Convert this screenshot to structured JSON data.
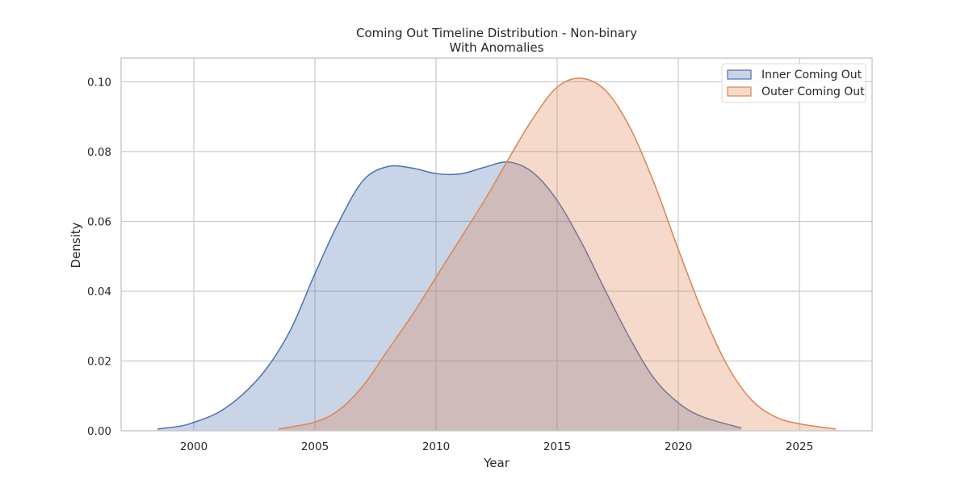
{
  "chart_data": {
    "type": "area",
    "title": "Coming Out Timeline Distribution - Non-binary",
    "subtitle": "With Anomalies",
    "xlabel": "Year",
    "ylabel": "Density",
    "xlim": [
      1997,
      2028
    ],
    "ylim": [
      0,
      0.1068
    ],
    "x_ticks": [
      2000,
      2005,
      2010,
      2015,
      2020,
      2025
    ],
    "y_ticks": [
      0.0,
      0.02,
      0.04,
      0.06,
      0.08,
      0.1
    ],
    "y_tick_labels": [
      "0.00",
      "0.02",
      "0.04",
      "0.06",
      "0.08",
      "0.10"
    ],
    "grid": true,
    "legend_position": "top-right",
    "series": [
      {
        "name": "Inner Coming Out",
        "color": "#4c72b0",
        "fill_opacity": 0.3,
        "x": [
          1998.5,
          1999.5,
          2000.0,
          2001.0,
          2002.0,
          2003.0,
          2004.0,
          2005.0,
          2006.0,
          2007.0,
          2008.0,
          2009.0,
          2010.0,
          2011.0,
          2012.0,
          2013.0,
          2014.0,
          2015.0,
          2016.0,
          2017.0,
          2018.0,
          2019.0,
          2020.0,
          2021.0,
          2022.6
        ],
        "y": [
          0.0005,
          0.0014,
          0.0024,
          0.0052,
          0.0103,
          0.0178,
          0.029,
          0.045,
          0.06,
          0.0718,
          0.0757,
          0.0753,
          0.0737,
          0.0736,
          0.0755,
          0.077,
          0.074,
          0.066,
          0.054,
          0.04,
          0.0265,
          0.015,
          0.008,
          0.004,
          0.0008
        ]
      },
      {
        "name": "Outer Coming Out",
        "color": "#dd8452",
        "fill_opacity": 0.3,
        "x": [
          2003.5,
          2005.0,
          2006.0,
          2007.0,
          2008.0,
          2009.0,
          2010.0,
          2011.0,
          2012.0,
          2013.0,
          2014.0,
          2015.0,
          2016.0,
          2017.0,
          2018.0,
          2019.0,
          2020.0,
          2021.0,
          2022.0,
          2023.0,
          2024.0,
          2025.0,
          2026.5
        ],
        "y": [
          0.0005,
          0.0025,
          0.006,
          0.013,
          0.023,
          0.033,
          0.044,
          0.055,
          0.066,
          0.078,
          0.0895,
          0.0985,
          0.101,
          0.0975,
          0.087,
          0.071,
          0.052,
          0.034,
          0.019,
          0.009,
          0.004,
          0.002,
          0.0005
        ]
      }
    ]
  }
}
